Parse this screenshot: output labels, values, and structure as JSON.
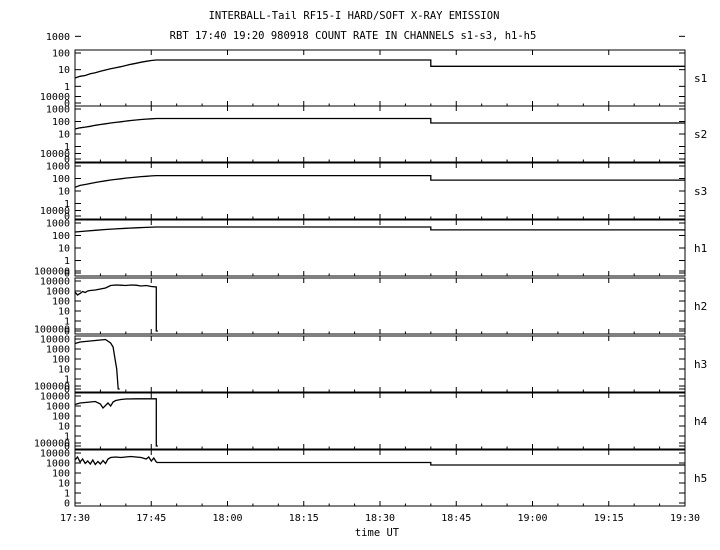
{
  "title": "INTERBALL-Tail RF15-I HARD/SOFT X-RAY EMISSION",
  "subtitle": "RBT 17:40 19:20 980918  COUNT RATE IN CHANNELS s1-s3, h1-h5",
  "chart_data": {
    "type": "line",
    "title": "INTERBALL-Tail RF15-I HARD/SOFT X-RAY EMISSION",
    "subtitle": "RBT 17:40 19:20 980918  COUNT RATE IN CHANNELS s1-s3, h1-h5",
    "xlabel": "time UT",
    "x_unit": "minutes",
    "x_ticks": [
      {
        "v": 0,
        "label": "17:30"
      },
      {
        "v": 15,
        "label": "17:45"
      },
      {
        "v": 30,
        "label": "18:00"
      },
      {
        "v": 45,
        "label": "18:15"
      },
      {
        "v": 60,
        "label": "18:30"
      },
      {
        "v": 75,
        "label": "18:45"
      },
      {
        "v": 90,
        "label": "19:00"
      },
      {
        "v": 105,
        "label": "19:15"
      },
      {
        "v": 120,
        "label": "19:30"
      }
    ],
    "xlim": [
      0,
      120
    ],
    "yscale": "log",
    "grid": false,
    "panels": [
      {
        "name": "s1",
        "ylim": [
          0,
          3
        ],
        "yticks": [
          "0",
          "1",
          "10",
          "100",
          "1000"
        ],
        "series": [
          [
            0,
            1.5
          ],
          [
            1,
            1.6
          ],
          [
            2,
            1.65
          ],
          [
            3,
            1.75
          ],
          [
            4,
            1.82
          ],
          [
            5,
            1.9
          ],
          [
            6,
            1.98
          ],
          [
            7,
            2.05
          ],
          [
            8,
            2.12
          ],
          [
            9,
            2.18
          ],
          [
            10,
            2.25
          ],
          [
            11,
            2.32
          ],
          [
            12,
            2.38
          ],
          [
            13,
            2.45
          ],
          [
            14,
            2.5
          ],
          [
            15,
            2.55
          ],
          [
            16,
            2.58
          ],
          [
            60,
            2.58
          ],
          [
            70,
            2.58
          ],
          [
            70,
            2.2
          ],
          [
            120,
            2.2
          ]
        ]
      },
      {
        "name": "s2",
        "ylim": [
          0,
          4
        ],
        "yticks": [
          "0",
          "1",
          "10",
          "100",
          "1000",
          "10000"
        ],
        "series": [
          [
            0,
            2.4
          ],
          [
            1,
            2.5
          ],
          [
            2,
            2.55
          ],
          [
            3,
            2.62
          ],
          [
            4,
            2.7
          ],
          [
            5,
            2.76
          ],
          [
            6,
            2.82
          ],
          [
            7,
            2.88
          ],
          [
            8,
            2.93
          ],
          [
            9,
            2.98
          ],
          [
            10,
            3.03
          ],
          [
            11,
            3.08
          ],
          [
            12,
            3.12
          ],
          [
            13,
            3.16
          ],
          [
            14,
            3.19
          ],
          [
            15,
            3.22
          ],
          [
            16,
            3.24
          ],
          [
            70,
            3.24
          ],
          [
            70,
            2.88
          ],
          [
            120,
            2.88
          ]
        ]
      },
      {
        "name": "s3",
        "ylim": [
          0,
          4
        ],
        "yticks": [
          "0",
          "1",
          "10",
          "100",
          "1000",
          "10000"
        ],
        "series": [
          [
            0,
            2.3
          ],
          [
            1,
            2.45
          ],
          [
            2,
            2.52
          ],
          [
            3,
            2.6
          ],
          [
            4,
            2.68
          ],
          [
            5,
            2.75
          ],
          [
            6,
            2.82
          ],
          [
            7,
            2.88
          ],
          [
            8,
            2.93
          ],
          [
            9,
            2.98
          ],
          [
            10,
            3.03
          ],
          [
            11,
            3.07
          ],
          [
            12,
            3.11
          ],
          [
            13,
            3.15
          ],
          [
            14,
            3.18
          ],
          [
            15,
            3.21
          ],
          [
            16,
            3.23
          ],
          [
            70,
            3.23
          ],
          [
            70,
            2.87
          ],
          [
            120,
            2.87
          ]
        ]
      },
      {
        "name": "h1",
        "ylim": [
          0,
          4
        ],
        "yticks": [
          "0",
          "1",
          "10",
          "100",
          "1000",
          "10000"
        ],
        "series": [
          [
            0,
            3.28
          ],
          [
            2,
            3.35
          ],
          [
            4,
            3.42
          ],
          [
            6,
            3.48
          ],
          [
            8,
            3.53
          ],
          [
            10,
            3.58
          ],
          [
            12,
            3.62
          ],
          [
            14,
            3.65
          ],
          [
            16,
            3.68
          ],
          [
            70,
            3.68
          ],
          [
            70,
            3.45
          ],
          [
            120,
            3.45
          ]
        ]
      },
      {
        "name": "h2",
        "ylim": [
          0,
          5
        ],
        "yticks": [
          "0",
          "1",
          "10",
          "100",
          "1000",
          "10000",
          "100000"
        ],
        "series": [
          [
            0,
            3.9
          ],
          [
            0.5,
            3.6
          ],
          [
            1,
            3.75
          ],
          [
            1.5,
            3.95
          ],
          [
            2,
            3.85
          ],
          [
            2.5,
            4.0
          ],
          [
            3,
            4.05
          ],
          [
            4,
            4.1
          ],
          [
            5,
            4.2
          ],
          [
            6,
            4.3
          ],
          [
            7,
            4.55
          ],
          [
            8,
            4.6
          ],
          [
            9,
            4.58
          ],
          [
            10,
            4.55
          ],
          [
            11,
            4.6
          ],
          [
            12,
            4.58
          ],
          [
            13,
            4.5
          ],
          [
            14,
            4.55
          ],
          [
            15,
            4.45
          ],
          [
            16,
            4.4
          ],
          [
            16,
            0
          ],
          [
            16.3,
            0
          ]
        ]
      },
      {
        "name": "h3",
        "ylim": [
          0,
          5
        ],
        "yticks": [
          "0",
          "1",
          "10",
          "100",
          "1000",
          "10000",
          "100000"
        ],
        "series": [
          [
            0,
            4.55
          ],
          [
            1,
            4.7
          ],
          [
            2,
            4.75
          ],
          [
            3,
            4.8
          ],
          [
            4,
            4.85
          ],
          [
            5,
            4.9
          ],
          [
            6,
            4.95
          ],
          [
            7,
            4.6
          ],
          [
            7.5,
            4.2
          ],
          [
            7.8,
            3.2
          ],
          [
            8.2,
            2.0
          ],
          [
            8.5,
            0
          ],
          [
            8.8,
            0
          ]
        ]
      },
      {
        "name": "h4",
        "ylim": [
          0,
          5
        ],
        "yticks": [
          "0",
          "1",
          "10",
          "100",
          "1000",
          "10000",
          "100000"
        ],
        "series": [
          [
            0,
            4.15
          ],
          [
            1,
            4.3
          ],
          [
            2,
            4.35
          ],
          [
            3,
            4.4
          ],
          [
            4,
            4.45
          ],
          [
            5,
            4.2
          ],
          [
            5.5,
            3.8
          ],
          [
            6,
            4.05
          ],
          [
            6.5,
            4.3
          ],
          [
            7,
            4.0
          ],
          [
            7.5,
            4.4
          ],
          [
            8,
            4.55
          ],
          [
            9,
            4.65
          ],
          [
            10,
            4.7
          ],
          [
            12,
            4.72
          ],
          [
            14,
            4.72
          ],
          [
            16,
            4.72
          ],
          [
            16,
            0
          ],
          [
            16.3,
            0
          ]
        ]
      },
      {
        "name": "h5",
        "ylim": [
          0,
          5
        ],
        "yticks": [
          "0",
          "1",
          "10",
          "100",
          "1000",
          "10000",
          "100000"
        ],
        "series": [
          [
            0,
            4.3
          ],
          [
            0.5,
            4.6
          ],
          [
            1,
            4.1
          ],
          [
            1.5,
            4.4
          ],
          [
            2,
            3.95
          ],
          [
            2.5,
            4.2
          ],
          [
            3,
            3.9
          ],
          [
            3.5,
            4.3
          ],
          [
            4,
            3.85
          ],
          [
            4.5,
            4.15
          ],
          [
            5,
            3.9
          ],
          [
            5.5,
            4.25
          ],
          [
            6,
            3.95
          ],
          [
            6.5,
            4.4
          ],
          [
            7,
            4.55
          ],
          [
            8,
            4.6
          ],
          [
            9,
            4.55
          ],
          [
            10,
            4.6
          ],
          [
            11,
            4.65
          ],
          [
            12,
            4.6
          ],
          [
            13,
            4.55
          ],
          [
            14,
            4.4
          ],
          [
            14.5,
            4.6
          ],
          [
            15,
            4.2
          ],
          [
            15.5,
            4.5
          ],
          [
            16,
            4.1
          ],
          [
            16.2,
            4.05
          ],
          [
            70,
            4.05
          ],
          [
            70,
            3.8
          ],
          [
            120,
            3.8
          ]
        ]
      }
    ]
  }
}
